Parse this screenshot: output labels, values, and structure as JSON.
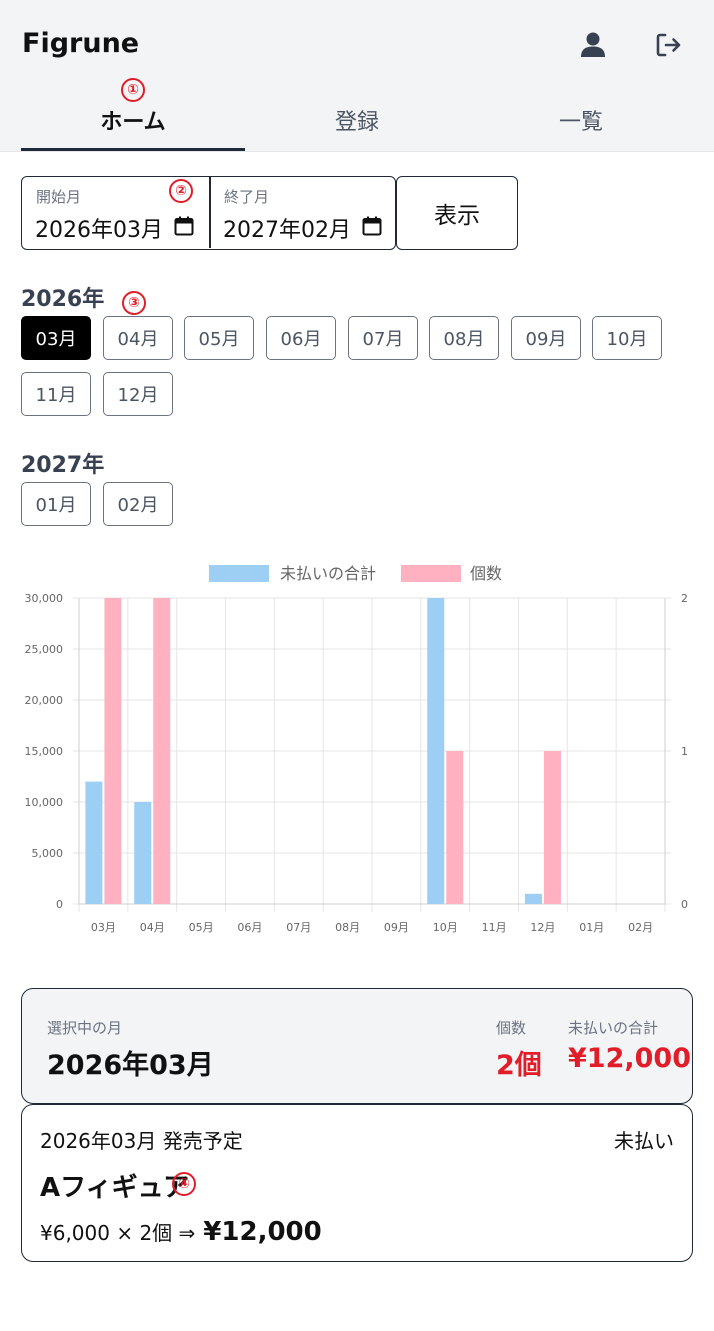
{
  "app": {
    "title": "Figrune",
    "icons": {
      "account": "user-icon",
      "logout": "logout-icon"
    }
  },
  "tabs": [
    {
      "label": "ホーム",
      "active": true
    },
    {
      "label": "登録",
      "active": false
    },
    {
      "label": "一覧",
      "active": false
    }
  ],
  "markers": [
    "①",
    "②",
    "③",
    "④"
  ],
  "range": {
    "start_label": "開始月",
    "start_value": "2026年03月",
    "end_label": "終了月",
    "end_value": "2027年02月",
    "show_button": "表示"
  },
  "years": [
    {
      "label": "2026年",
      "months": [
        "03月",
        "04月",
        "05月",
        "06月",
        "07月",
        "08月",
        "09月",
        "10月",
        "11月",
        "12月"
      ]
    },
    {
      "label": "2027年",
      "months": [
        "01月",
        "02月"
      ]
    }
  ],
  "selected_month": "03月",
  "chart_data": {
    "type": "bar",
    "categories": [
      "03月",
      "04月",
      "05月",
      "06月",
      "07月",
      "08月",
      "09月",
      "10月",
      "11月",
      "12月",
      "01月",
      "02月"
    ],
    "series": [
      {
        "name": "未払いの合計",
        "axis": "left",
        "color": "#9ccff3",
        "values": [
          12000,
          10000,
          0,
          0,
          0,
          0,
          0,
          30000,
          0,
          1000,
          0,
          0
        ]
      },
      {
        "name": "個数",
        "axis": "right",
        "color": "#ffb1c1",
        "values": [
          2,
          2,
          0,
          0,
          0,
          0,
          0,
          1,
          0,
          1,
          0,
          0
        ]
      }
    ],
    "y_left": {
      "min": 0,
      "max": 30000,
      "ticks": [
        "0",
        "5,000",
        "10,000",
        "15,000",
        "20,000",
        "25,000",
        "30,000"
      ]
    },
    "y_right": {
      "min": 0,
      "max": 2,
      "ticks": [
        "0",
        "1",
        "2"
      ]
    },
    "legend": "top-center",
    "grid": true
  },
  "summary": {
    "label": "選択中の月",
    "month": "2026年03月",
    "count_label": "個数",
    "count": "2個",
    "total_label": "未払いの合計",
    "total": "¥12,000"
  },
  "item": {
    "date": "2026年03月 発売予定",
    "status": "未払い",
    "name": "Aフィギュア",
    "calc": "¥6,000 × 2個 ⇒",
    "result": "¥12,000"
  }
}
